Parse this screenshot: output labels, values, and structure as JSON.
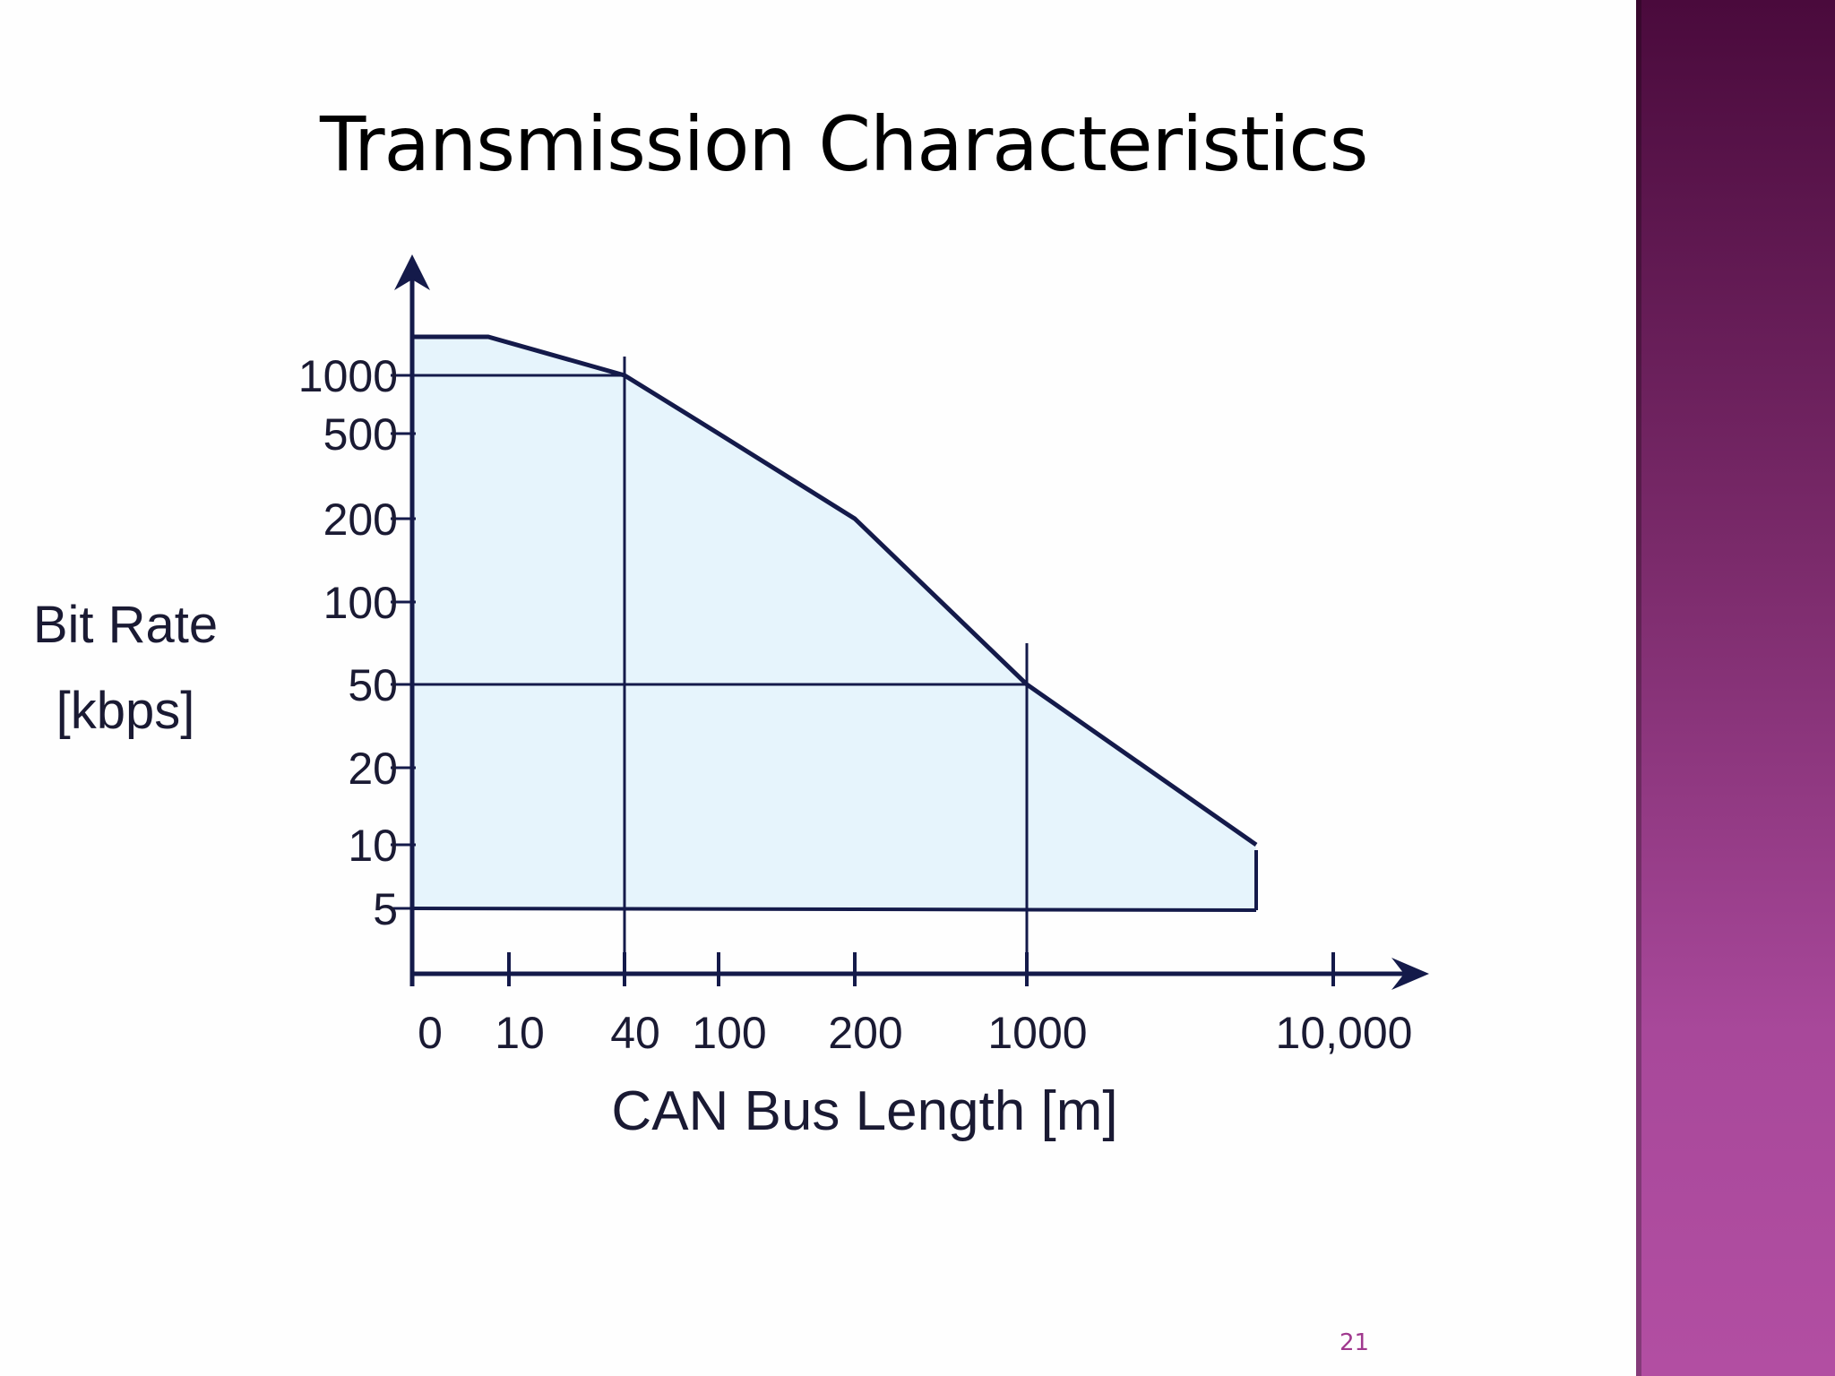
{
  "slide": {
    "title": "Transmission Characteristics",
    "page_number": "21",
    "accent_color": "#a0388e"
  },
  "chart_data": {
    "type": "area",
    "title": "",
    "xlabel": "CAN Bus Length [m]",
    "ylabel_line1": "Bit Rate",
    "ylabel_line2": "[kbps]",
    "x_ticks": [
      "0",
      "10",
      "40",
      "100",
      "200",
      "1000",
      "10,000"
    ],
    "y_ticks": [
      "1000",
      "500",
      "200",
      "100",
      "50",
      "20",
      "10",
      "5"
    ],
    "series": [
      {
        "x": [
          "0",
          "10",
          "40",
          "100",
          "200",
          "1000",
          "5000"
        ],
        "y": [
          1000,
          1000,
          1000,
          500,
          200,
          50,
          10
        ]
      }
    ],
    "reference_lines": [
      {
        "x": "40",
        "y": 1000
      },
      {
        "x": "1000",
        "y": 50
      }
    ],
    "y_min": 5,
    "fill_color": "#e6f4fc",
    "line_color": "#141a4a",
    "grid": false,
    "legend": "none"
  }
}
